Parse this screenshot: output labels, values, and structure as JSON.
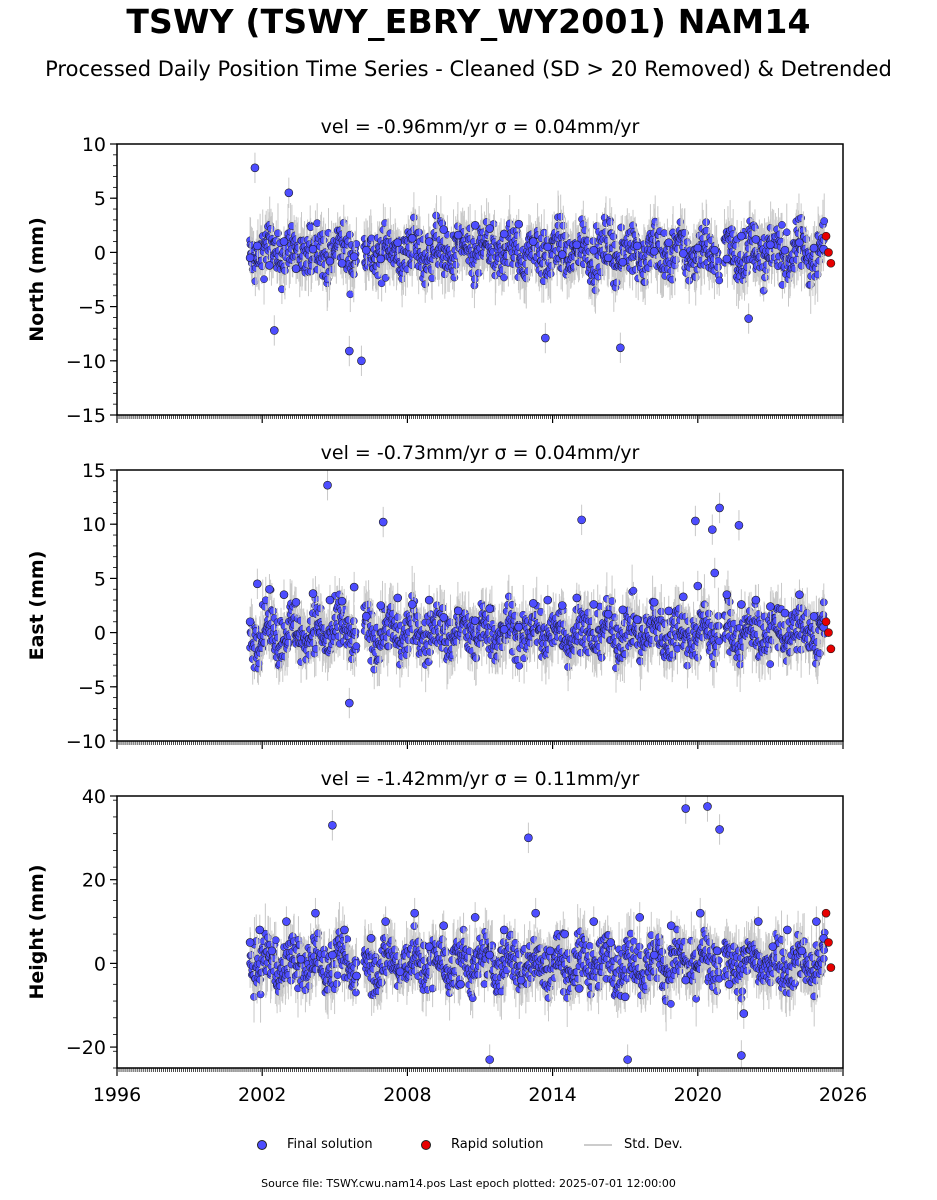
{
  "title": "TSWY (TSWY_EBRY_WY2001) NAM14",
  "subtitle": "Processed Daily Position Time Series - Cleaned (SD > 20 Removed) & Detrended",
  "legend": {
    "final": "Final solution",
    "rapid": "Rapid solution",
    "std": "Std. Dev."
  },
  "footer": "Source file: TSWY.cwu.nam14.pos  Last epoch plotted: 2025-07-01 12:00:00",
  "colors": {
    "final": "#4d4dff",
    "rapid": "#e60000",
    "std": "#c8c8c8",
    "edge": "#1a1a1a"
  },
  "chart_data": [
    {
      "type": "scatter",
      "title": "vel = -0.96mm/yr   σ = 0.04mm/yr",
      "ylabel": "North (mm)",
      "xlim": [
        1996,
        2026
      ],
      "ylim": [
        -15,
        10
      ],
      "yticks": [
        10,
        5,
        0,
        -5,
        -10,
        -15
      ],
      "ytick_labels": [
        "10",
        "5",
        "0",
        "−5",
        "−10",
        "−15"
      ],
      "xticks": [
        1996,
        2002,
        2008,
        2014,
        2020,
        2026
      ],
      "xtick_labels": [
        "1996",
        "2002",
        "2008",
        "2014",
        "2020",
        "2026"
      ],
      "show_xtick_labels": false,
      "series": [
        {
          "name": "Final solution",
          "x": [
            2001.5,
            2001.7,
            2001.8,
            2002.3,
            2002.9,
            2003.4,
            2004.1,
            2004.8,
            2005.3,
            2005.8,
            2006.3,
            2006.9,
            2007.6,
            2008.2,
            2008.9,
            2009.5,
            2010.1,
            2010.8,
            2011.4,
            2012.0,
            2012.6,
            2013.2,
            2013.8,
            2014.4,
            2015.0,
            2015.7,
            2016.3,
            2016.9,
            2017.5,
            2018.2,
            2018.8,
            2019.4,
            2020.0,
            2020.7,
            2021.2,
            2021.8,
            2022.4,
            2023.0,
            2023.6,
            2024.2,
            2024.8,
            2025.2,
            2002.5,
            2003.1,
            2005.6,
            2006.1,
            2013.7,
            2016.8,
            2022.1
          ],
          "y": [
            -0.5,
            7.8,
            0.6,
            -1.2,
            1.0,
            -1.5,
            0.3,
            -0.8,
            -1.0,
            -0.4,
            0.2,
            -0.6,
            0.9,
            1.3,
            1.0,
            2.1,
            1.6,
            2.5,
            2.2,
            1.7,
            2.6,
            1.0,
            0.5,
            -0.2,
            0.7,
            0.2,
            -0.5,
            -0.9,
            0.6,
            0.1,
            0.9,
            -0.1,
            0.4,
            0.2,
            -0.6,
            1.5,
            1.2,
            0.7,
            0.2,
            0.9,
            0.4,
            0.3,
            -7.2,
            5.5,
            -9.1,
            -10.0,
            -7.9,
            -8.8,
            -6.1
          ]
        },
        {
          "name": "Rapid solution",
          "x": [
            2025.3,
            2025.4,
            2025.5
          ],
          "y": [
            1.5,
            0.0,
            -1.0
          ]
        }
      ]
    },
    {
      "type": "scatter",
      "title": "vel = -0.73mm/yr   σ = 0.04mm/yr",
      "ylabel": "East (mm)",
      "xlim": [
        1996,
        2026
      ],
      "ylim": [
        -10,
        15
      ],
      "yticks": [
        15,
        10,
        5,
        0,
        -5,
        -10
      ],
      "ytick_labels": [
        "15",
        "10",
        "5",
        "0",
        "−5",
        "−10"
      ],
      "xticks": [
        1996,
        2002,
        2008,
        2014,
        2020,
        2026
      ],
      "xtick_labels": [
        "1996",
        "2002",
        "2008",
        "2014",
        "2020",
        "2026"
      ],
      "show_xtick_labels": false,
      "series": [
        {
          "name": "Final solution",
          "x": [
            2001.5,
            2001.8,
            2002.3,
            2002.9,
            2003.4,
            2004.1,
            2004.8,
            2005.3,
            2005.8,
            2006.3,
            2006.9,
            2007.6,
            2008.2,
            2008.9,
            2009.5,
            2010.1,
            2010.8,
            2011.4,
            2012.0,
            2012.6,
            2013.2,
            2013.8,
            2014.4,
            2015.0,
            2015.7,
            2016.3,
            2016.9,
            2017.5,
            2018.2,
            2018.8,
            2019.4,
            2020.0,
            2020.7,
            2021.2,
            2021.8,
            2022.4,
            2023.0,
            2023.6,
            2024.2,
            2024.8,
            2025.2,
            2004.7,
            2005.6,
            2007.0,
            2015.2,
            2019.9,
            2020.6,
            2020.9,
            2021.7
          ],
          "y": [
            1.0,
            4.5,
            4.0,
            3.5,
            2.8,
            3.6,
            3.0,
            2.9,
            4.2,
            1.5,
            2.5,
            3.2,
            2.6,
            3.0,
            1.4,
            2.0,
            1.1,
            2.2,
            0.3,
            0.5,
            2.7,
            3.0,
            2.5,
            3.2,
            2.6,
            1.7,
            2.1,
            1.2,
            2.8,
            2.0,
            3.3,
            4.3,
            5.5,
            3.5,
            2.6,
            3.0,
            2.4,
            1.8,
            3.5,
            1.5,
            0.5,
            13.6,
            -6.5,
            10.2,
            10.4,
            10.3,
            9.5,
            11.5,
            9.9
          ]
        },
        {
          "name": "Rapid solution",
          "x": [
            2025.3,
            2025.4,
            2025.5
          ],
          "y": [
            1.0,
            0.0,
            -1.5
          ]
        }
      ]
    },
    {
      "type": "scatter",
      "title": "vel = -1.42mm/yr   σ = 0.11mm/yr",
      "ylabel": "Height (mm)",
      "xlim": [
        1996,
        2026
      ],
      "ylim": [
        -25,
        40
      ],
      "yticks": [
        40,
        20,
        0,
        -20
      ],
      "ytick_labels": [
        "40",
        "20",
        "0",
        "−20"
      ],
      "xticks": [
        1996,
        2002,
        2008,
        2014,
        2020,
        2026
      ],
      "xtick_labels": [
        "1996",
        "2002",
        "2008",
        "2014",
        "2020",
        "2026"
      ],
      "show_xtick_labels": true,
      "series": [
        {
          "name": "Final solution",
          "x": [
            2001.5,
            2001.9,
            2002.4,
            2003.0,
            2003.6,
            2004.2,
            2004.9,
            2005.4,
            2005.9,
            2006.5,
            2007.1,
            2007.7,
            2008.3,
            2008.9,
            2009.5,
            2010.2,
            2010.8,
            2011.4,
            2012.0,
            2012.7,
            2013.3,
            2013.9,
            2014.5,
            2015.1,
            2015.7,
            2016.4,
            2017.0,
            2017.6,
            2018.2,
            2018.9,
            2019.5,
            2020.1,
            2020.8,
            2021.3,
            2021.9,
            2022.5,
            2023.1,
            2023.7,
            2024.3,
            2024.9,
            2025.2,
            2004.9,
            2013.0,
            2019.5,
            2020.4,
            2020.9,
            2017.1,
            2021.8,
            2011.4
          ],
          "y": [
            5.0,
            8.0,
            3.0,
            10.0,
            1.0,
            12.0,
            2.0,
            8.0,
            -3.0,
            6.0,
            10.0,
            -2.0,
            12.0,
            4.0,
            9.0,
            -5.0,
            11.0,
            2.0,
            8.0,
            -4.0,
            12.0,
            3.0,
            7.0,
            -6.0,
            10.0,
            5.0,
            -8.0,
            11.0,
            2.0,
            9.0,
            -4.0,
            12.0,
            3.0,
            -5.0,
            -12.0,
            10.0,
            4.0,
            8.0,
            3.0,
            10.0,
            6.0,
            33.0,
            30.0,
            37.0,
            37.5,
            32.0,
            -23.0,
            -22.0,
            -23.0
          ]
        },
        {
          "name": "Rapid solution",
          "x": [
            2025.3,
            2025.4,
            2025.5
          ],
          "y": [
            12.0,
            5.0,
            -1.0
          ]
        }
      ]
    }
  ]
}
